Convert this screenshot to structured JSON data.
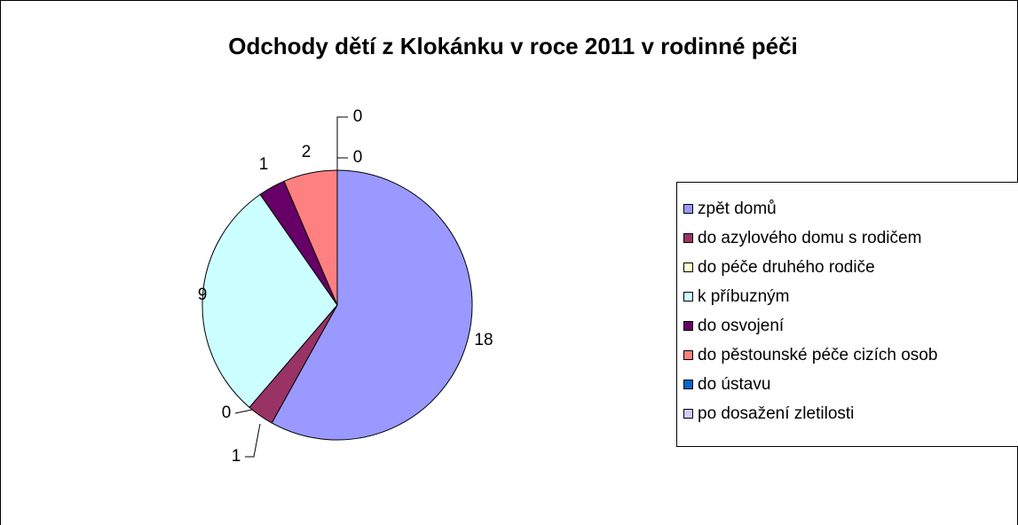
{
  "chart_data": {
    "type": "pie",
    "title": "Odchody dětí z Klokánku v roce 2011 v rodinné péči",
    "categories": [
      "zpět domů",
      "do azylového domu s rodičem",
      "do péče druhého rodiče",
      "k příbuzným",
      "do osvojení",
      "do pěstounské péče cizích osob",
      "do ústavu",
      "po dosažení zletilosti"
    ],
    "values": [
      18,
      1,
      0,
      9,
      1,
      2,
      0,
      0
    ],
    "colors": [
      "#9999ff",
      "#993366",
      "#ffffcc",
      "#ccffff",
      "#660066",
      "#ff8080",
      "#0066cc",
      "#ccccff"
    ],
    "legend": "right"
  }
}
